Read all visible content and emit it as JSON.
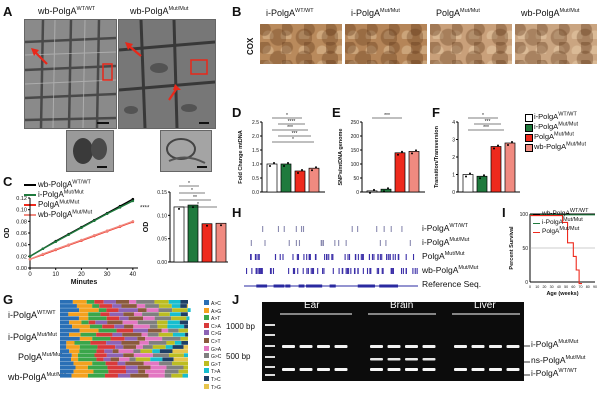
{
  "panel_letters": [
    "A",
    "B",
    "C",
    "D",
    "E",
    "F",
    "G",
    "H",
    "I",
    "J"
  ],
  "panelA": {
    "left_title": "wb-PolgA",
    "left_title_sup": "WT/WT",
    "right_title": "wb-PolgA",
    "right_title_sup": "Mut/Mut"
  },
  "panelB": {
    "stain_label": "COX",
    "columns": [
      {
        "name": "i-PolgA",
        "sup": "WT/WT",
        "color": "#b98a5c"
      },
      {
        "name": "i-PolgA",
        "sup": "Mut/Mut",
        "color": "#b58558"
      },
      {
        "name": "PolgA",
        "sup": "Mut/Mut",
        "color": "#c9a07a"
      },
      {
        "name": "wb-PolgA",
        "sup": "Mut/Mut",
        "color": "#caa581"
      }
    ]
  },
  "panelC": {
    "legend": [
      {
        "name": "wb-PolgA",
        "sup": "WT/WT",
        "color": "#000000"
      },
      {
        "name": "i-PolgA",
        "sup": "Mut/Mut",
        "color": "#1f7a3d"
      },
      {
        "name": "PolgA",
        "sup": "Mut/Mut",
        "color": "#ee2a1d"
      },
      {
        "name": "wb-PolgA",
        "sup": "Mut/Mut",
        "color": "#f08a80"
      }
    ],
    "line_xlabel": "Minutes",
    "line_ylabel": "OD",
    "bar_ylabel": "OD",
    "line_yticks": [
      "0.00",
      "0.02",
      "0.04",
      "0.06",
      "0.08",
      "0.10",
      "0.12"
    ],
    "line_xticks": [
      "0",
      "10",
      "20",
      "30",
      "40"
    ],
    "bar_yticks": [
      "0.00",
      "0.05",
      "0.10",
      "0.15"
    ]
  },
  "panelD": {
    "ylabel": "Fold Change mtDNA",
    "yticks": [
      "0.0",
      "0.5",
      "1.0",
      "1.5",
      "2.0",
      "2.5"
    ]
  },
  "panelE": {
    "ylabel": "SNPs/mtDNA genome",
    "yticks": [
      "0",
      "50",
      "100",
      "150",
      "200",
      "250"
    ]
  },
  "panelF": {
    "ylabel": "Transition/Transversion",
    "yticks": [
      "0",
      "1",
      "2",
      "3",
      "4"
    ]
  },
  "legendDEF": [
    {
      "name": "i-PolgA",
      "sup": "WT/WT",
      "color": "#ffffff"
    },
    {
      "name": "i-PolgA",
      "sup": "Mut/Mut",
      "color": "#1f7a3d"
    },
    {
      "name": "PolgA",
      "sup": "Mut/Mut",
      "color": "#ee2a1d"
    },
    {
      "name": "wb-PolgA",
      "sup": "Mut/Mut",
      "color": "#f08a80"
    }
  ],
  "panelG": {
    "rows": [
      {
        "name": "i-PolgA",
        "sup": "WT/WT"
      },
      {
        "name": "i-PolgA",
        "sup": "Mut/Mut"
      },
      {
        "name": "PolgA",
        "sup": "Mut/Mut"
      },
      {
        "name": "wb-PolgA",
        "sup": "Mut/Mut"
      }
    ],
    "legend": [
      {
        "label": "A>C",
        "color": "#2a6fb5"
      },
      {
        "label": "A>G",
        "color": "#f4a11f"
      },
      {
        "label": "A>T",
        "color": "#3aa64a"
      },
      {
        "label": "C>A",
        "color": "#d93a3a"
      },
      {
        "label": "C>G",
        "color": "#8d63b5"
      },
      {
        "label": "C>T",
        "color": "#8a5a3c"
      },
      {
        "label": "G>A",
        "color": "#e377c2"
      },
      {
        "label": "G>C",
        "color": "#7f7f7f"
      },
      {
        "label": "G>T",
        "color": "#bcbd22"
      },
      {
        "label": "T>A",
        "color": "#17becf"
      },
      {
        "label": "T>C",
        "color": "#1e3f66"
      },
      {
        "label": "T>G",
        "color": "#e6c44c"
      }
    ]
  },
  "panelH": {
    "tracks": [
      {
        "name": "i-PolgA",
        "sup": "WT/WT"
      },
      {
        "name": "i-PolgA",
        "sup": "Mut/Mut"
      },
      {
        "name": "PolgA",
        "sup": "Mut/Mut"
      },
      {
        "name": "wb-PolgA",
        "sup": "Mut/Mut"
      },
      {
        "name": "Reference Seq.",
        "sup": ""
      }
    ]
  },
  "panelI": {
    "legend": [
      {
        "name": "wb-PolgA",
        "sup": "WT/WT",
        "color": "#000000"
      },
      {
        "name": "i-PolgA",
        "sup": "Mut/Mut",
        "color": "#1f7a3d"
      },
      {
        "name": "PolgA",
        "sup": "Mut/Mut",
        "color": "#ee2a1d"
      }
    ],
    "xlabel": "Age (weeks)",
    "ylabel": "Percent Survival",
    "xticks": [
      "0",
      "10",
      "20",
      "30",
      "40",
      "50",
      "60",
      "70",
      "80",
      "90"
    ],
    "yticks": [
      "0",
      "50",
      "100"
    ]
  },
  "panelJ": {
    "groups": [
      "Ear",
      "Brain",
      "Liver"
    ],
    "ladder": [
      "1000 bp",
      "500 bp"
    ],
    "bands": [
      {
        "name": "i-PolgA",
        "sup": "Mut/Mut"
      },
      {
        "name": "ns-PolgA",
        "sup": "Mut/Mut"
      },
      {
        "name": "i-PolgA",
        "sup": "WT/WT"
      }
    ]
  },
  "chart_data": [
    {
      "id": "C-line",
      "type": "line",
      "xlabel": "Minutes",
      "ylabel": "OD",
      "xlim": [
        0,
        42
      ],
      "ylim": [
        0,
        0.12
      ],
      "significance": "****",
      "series": [
        {
          "name": "wb-PolgA WT/WT",
          "x": [
            0,
            5,
            10,
            15,
            20,
            25,
            30,
            35,
            40
          ],
          "values": [
            0.02,
            0.033,
            0.046,
            0.058,
            0.07,
            0.082,
            0.094,
            0.106,
            0.118
          ]
        },
        {
          "name": "i-PolgA Mut/Mut",
          "x": [
            0,
            5,
            10,
            15,
            20,
            25,
            30,
            35,
            40
          ],
          "values": [
            0.02,
            0.033,
            0.045,
            0.057,
            0.069,
            0.081,
            0.093,
            0.104,
            0.115
          ]
        },
        {
          "name": "PolgA Mut/Mut",
          "x": [
            0,
            5,
            10,
            15,
            20,
            25,
            30,
            35,
            40
          ],
          "values": [
            0.015,
            0.023,
            0.031,
            0.039,
            0.047,
            0.055,
            0.063,
            0.071,
            0.079
          ]
        },
        {
          "name": "wb-PolgA Mut/Mut",
          "x": [
            0,
            5,
            10,
            15,
            20,
            25,
            30,
            35,
            40
          ],
          "values": [
            0.015,
            0.024,
            0.032,
            0.04,
            0.048,
            0.056,
            0.064,
            0.072,
            0.08
          ]
        }
      ]
    },
    {
      "id": "C-bar",
      "type": "bar",
      "ylabel": "OD",
      "ylim": [
        0,
        0.15
      ],
      "categories": [
        "wb-PolgA WT/WT",
        "i-PolgA Mut/Mut",
        "PolgA Mut/Mut",
        "wb-PolgA Mut/Mut"
      ],
      "values": [
        0.118,
        0.122,
        0.082,
        0.083
      ],
      "colors": [
        "#ffffff",
        "#1f7a3d",
        "#ee2a1d",
        "#f08a80"
      ],
      "significance": [
        "*",
        "*",
        "**",
        "*"
      ]
    },
    {
      "id": "D",
      "type": "bar",
      "ylabel": "Fold Change mtDNA",
      "ylim": [
        0,
        2.5
      ],
      "categories": [
        "i-PolgA WT/WT",
        "i-PolgA Mut/Mut",
        "PolgA Mut/Mut",
        "wb-PolgA Mut/Mut"
      ],
      "values": [
        1.0,
        1.0,
        0.75,
        0.85
      ],
      "colors": [
        "#ffffff",
        "#1f7a3d",
        "#ee2a1d",
        "#f08a80"
      ],
      "significance": [
        "*",
        "****",
        "***",
        "***",
        "*"
      ]
    },
    {
      "id": "E",
      "type": "bar",
      "ylabel": "SNPs/mtDNA genome",
      "ylim": [
        0,
        250
      ],
      "categories": [
        "i-PolgA WT/WT",
        "i-PolgA Mut/Mut",
        "PolgA Mut/Mut",
        "wb-PolgA Mut/Mut"
      ],
      "values": [
        4,
        10,
        140,
        145
      ],
      "colors": [
        "#ffffff",
        "#1f7a3d",
        "#ee2a1d",
        "#f08a80"
      ],
      "significance": [
        "***"
      ]
    },
    {
      "id": "F",
      "type": "bar",
      "ylabel": "Transition/Transversion",
      "ylim": [
        0,
        4
      ],
      "categories": [
        "i-PolgA WT/WT",
        "i-PolgA Mut/Mut",
        "PolgA Mut/Mut",
        "wb-PolgA Mut/Mut"
      ],
      "values": [
        1.0,
        0.9,
        2.6,
        2.8
      ],
      "colors": [
        "#ffffff",
        "#1f7a3d",
        "#ee2a1d",
        "#f08a80"
      ],
      "significance": [
        "*",
        "***",
        "***"
      ]
    },
    {
      "id": "I",
      "type": "line",
      "xlabel": "Age (weeks)",
      "ylabel": "Percent Survival",
      "xlim": [
        0,
        90
      ],
      "ylim": [
        0,
        100
      ],
      "series": [
        {
          "name": "wb-PolgA WT/WT",
          "x": [
            0,
            90
          ],
          "values": [
            100,
            100
          ]
        },
        {
          "name": "i-PolgA Mut/Mut",
          "x": [
            0,
            90
          ],
          "values": [
            100,
            100
          ]
        },
        {
          "name": "PolgA Mut/Mut",
          "x": [
            0,
            45,
            45,
            52,
            52,
            60,
            60,
            64,
            64,
            68,
            68,
            72
          ],
          "values": [
            100,
            100,
            90,
            90,
            60,
            60,
            40,
            40,
            20,
            20,
            0,
            0
          ]
        }
      ]
    }
  ]
}
